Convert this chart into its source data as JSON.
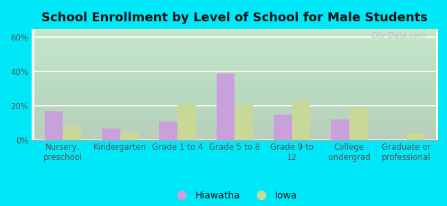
{
  "title": "School Enrollment by Level of School for Male Students",
  "categories": [
    "Nursery,\npreschool",
    "Kindergarten",
    "Grade 1 to 4",
    "Grade 5 to 8",
    "Grade 9 to\n12",
    "College\nundergrad",
    "Graduate or\nprofessional"
  ],
  "hiawatha": [
    17,
    7,
    11,
    39,
    15,
    12,
    0
  ],
  "iowa": [
    8,
    5,
    21,
    21,
    23,
    19,
    4
  ],
  "hiawatha_color": "#c9a0dc",
  "iowa_color": "#c8d896",
  "background_outer": "#00e8f8",
  "yticks": [
    0,
    20,
    40,
    60
  ],
  "ylim": [
    0,
    65
  ],
  "legend_labels": [
    "Hiawatha",
    "Iowa"
  ],
  "title_fontsize": 13,
  "tick_fontsize": 8.5,
  "legend_fontsize": 10,
  "title_color": "#111111"
}
